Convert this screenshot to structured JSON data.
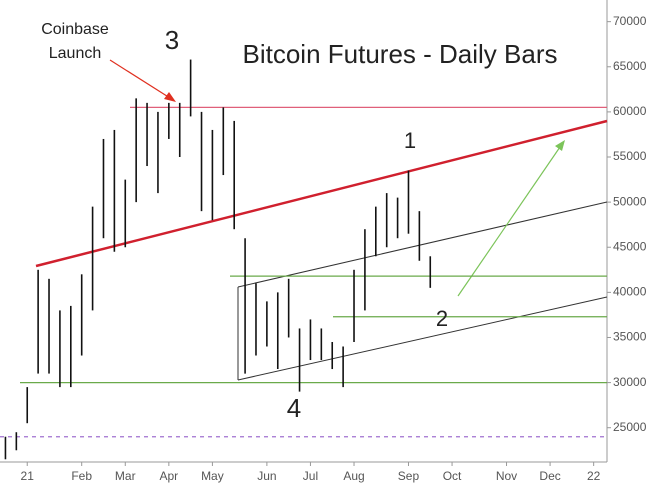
{
  "chart_data": {
    "type": "ohlc",
    "title": "Bitcoin Futures - Daily Bars",
    "categories": [
      null,
      null,
      "21",
      null,
      null,
      null,
      null,
      "Feb",
      null,
      null,
      null,
      "Mar",
      null,
      null,
      null,
      "Apr",
      null,
      null,
      null,
      "May",
      null,
      null,
      null,
      null,
      "Jun",
      null,
      null,
      null,
      "Jul",
      null,
      null,
      null,
      "Aug",
      null,
      null,
      null,
      null,
      "Sep",
      null,
      null,
      null,
      "Oct",
      null,
      null,
      null,
      null,
      "Nov",
      null,
      null,
      null,
      "Dec",
      null,
      null,
      null,
      "22",
      null
    ],
    "high": [
      24000,
      24500,
      29500,
      42500,
      41500,
      38000,
      38500,
      42000,
      49500,
      57000,
      58000,
      52500,
      61500,
      61000,
      60000,
      61000,
      61000,
      65800,
      60000,
      58000,
      60500,
      59000,
      46000,
      41000,
      39000,
      40000,
      41500,
      36000,
      37000,
      36000,
      34500,
      34000,
      42500,
      47000,
      49500,
      51000,
      50500,
      53500,
      49000,
      44000,
      null,
      null,
      null,
      null,
      null,
      null,
      null,
      null,
      null,
      null,
      null,
      null,
      null,
      null,
      null,
      null
    ],
    "low": [
      21500,
      22500,
      25500,
      31000,
      31000,
      29500,
      29500,
      33000,
      38000,
      46000,
      44500,
      45000,
      50000,
      54000,
      51000,
      57000,
      55000,
      59500,
      49000,
      48000,
      53000,
      47000,
      31000,
      33000,
      34000,
      31500,
      35000,
      29000,
      32500,
      32500,
      31500,
      29500,
      34500,
      38000,
      44000,
      45000,
      46000,
      46500,
      43500,
      40500,
      null,
      null,
      null,
      null,
      null,
      null,
      null,
      null,
      null,
      null,
      null,
      null,
      null,
      null,
      null,
      null
    ],
    "color": "#111111",
    "ylim": [
      21200,
      72400
    ],
    "yticks": [
      25000,
      30000,
      35000,
      40000,
      45000,
      50000,
      55000,
      60000,
      65000,
      70000
    ],
    "levels": [
      {
        "value": 60500,
        "color": "#e0607a"
      },
      {
        "value": 41800,
        "color": "#6aaa4a"
      },
      {
        "value": 37300,
        "color": "#6aaa4a"
      },
      {
        "value": 30000,
        "color": "#6aaa4a"
      },
      {
        "value": 24000,
        "color": "#a070d0",
        "dashed": true
      }
    ],
    "annotations": [
      "3",
      "1",
      "2",
      "4",
      "Coinbase",
      "Launch"
    ]
  }
}
